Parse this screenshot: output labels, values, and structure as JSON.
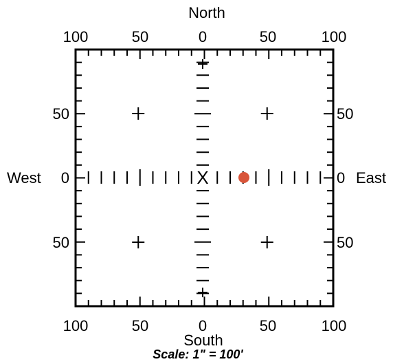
{
  "directions": {
    "north": "North",
    "south": "South",
    "west": "West",
    "east": "East"
  },
  "top_ticks": [
    "100",
    "50",
    "0",
    "50",
    "100"
  ],
  "bottom_ticks": [
    "100",
    "50",
    "0",
    "50",
    "100"
  ],
  "left_ticks": [
    "50",
    "0",
    "50"
  ],
  "right_ticks": [
    "50",
    "0",
    "50"
  ],
  "center_mark": "X",
  "scale_text": "Scale: 1\" = 100'",
  "colors": {
    "point": "#d8553a",
    "line": "#000000",
    "background": "#ffffff"
  },
  "point": {
    "east": 32,
    "north": 0
  }
}
